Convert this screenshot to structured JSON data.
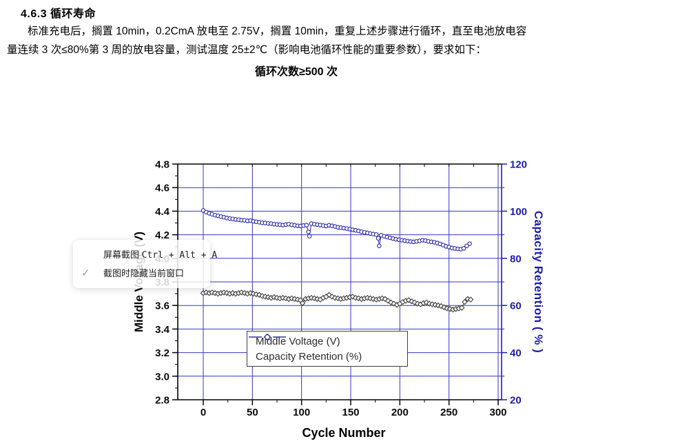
{
  "document": {
    "heading": "4.6.3  循环寿命",
    "paragraph_line1": "标准充电后，搁置 10min，0.2CmA 放电至 2.75V，搁置 10min，重复上述步骤进行循环，直至电池放电容",
    "paragraph_line2": "量连续 3 次≤80%第 3 周的放电容量，测试温度 25±2℃（影响电池循环性能的重要参数），要求如下：",
    "requirement": "循环次数≥500 次"
  },
  "screenshot_popup": {
    "menu_label": "屏幕截图",
    "menu_shortcut": "Ctrl + Alt + A",
    "check_icon": "✓",
    "option_label": "截图时隐藏当前窗口"
  },
  "chart_data": {
    "type": "line",
    "title": "",
    "xlabel": "Cycle Number",
    "ylabel_left": "Middle Voltage (V)",
    "ylabel_right": "Capacity Retention ( % )",
    "xlim": [
      -26,
      304
    ],
    "ylim_left": [
      2.8,
      4.8
    ],
    "ylim_right": [
      20,
      120
    ],
    "grid": true,
    "legend_position": "inside-bottom-center",
    "x_ticks": [
      0,
      50,
      100,
      150,
      200,
      250,
      300
    ],
    "y_left_ticks": [
      "2.8",
      "3.0",
      "3.2",
      "3.4",
      "3.6",
      "3.8",
      "4.0",
      "4.2",
      "4.4",
      "4.6",
      "4.8"
    ],
    "y_right_ticks": [
      "20",
      "40",
      "60",
      "80",
      "100",
      "120"
    ],
    "style": {
      "grid_color": "#3434c8",
      "axis_color": "#000000",
      "right_axis_color": "#1c1cac",
      "left_tick_label_color": "#0a0a0a"
    },
    "series": [
      {
        "id": "middle-voltage",
        "name": "Middle Voltage (V)",
        "axis": "left",
        "marker": "diamond",
        "color": "#3a3a3a",
        "points": [
          [
            0,
            3.705
          ],
          [
            3,
            3.71
          ],
          [
            6,
            3.705
          ],
          [
            9,
            3.71
          ],
          [
            12,
            3.705
          ],
          [
            15,
            3.7
          ],
          [
            18,
            3.705
          ],
          [
            21,
            3.71
          ],
          [
            24,
            3.705
          ],
          [
            27,
            3.7
          ],
          [
            30,
            3.705
          ],
          [
            33,
            3.7
          ],
          [
            36,
            3.705
          ],
          [
            39,
            3.71
          ],
          [
            42,
            3.705
          ],
          [
            45,
            3.7
          ],
          [
            48,
            3.705
          ],
          [
            51,
            3.7
          ],
          [
            54,
            3.695
          ],
          [
            57,
            3.69
          ],
          [
            60,
            3.68
          ],
          [
            63,
            3.675
          ],
          [
            66,
            3.67
          ],
          [
            69,
            3.665
          ],
          [
            72,
            3.67
          ],
          [
            75,
            3.665
          ],
          [
            78,
            3.66
          ],
          [
            81,
            3.665
          ],
          [
            84,
            3.66
          ],
          [
            87,
            3.655
          ],
          [
            90,
            3.66
          ],
          [
            93,
            3.655
          ],
          [
            96,
            3.65
          ],
          [
            99,
            3.645
          ],
          [
            101,
            3.62
          ],
          [
            104,
            3.655
          ],
          [
            107,
            3.66
          ],
          [
            110,
            3.665
          ],
          [
            113,
            3.66
          ],
          [
            116,
            3.655
          ],
          [
            119,
            3.65
          ],
          [
            122,
            3.665
          ],
          [
            125,
            3.675
          ],
          [
            128,
            3.69
          ],
          [
            131,
            3.675
          ],
          [
            134,
            3.665
          ],
          [
            137,
            3.66
          ],
          [
            140,
            3.655
          ],
          [
            143,
            3.66
          ],
          [
            146,
            3.665
          ],
          [
            149,
            3.67
          ],
          [
            152,
            3.675
          ],
          [
            155,
            3.665
          ],
          [
            158,
            3.66
          ],
          [
            161,
            3.655
          ],
          [
            164,
            3.66
          ],
          [
            167,
            3.665
          ],
          [
            170,
            3.66
          ],
          [
            173,
            3.655
          ],
          [
            176,
            3.65
          ],
          [
            179,
            3.655
          ],
          [
            182,
            3.66
          ],
          [
            185,
            3.655
          ],
          [
            188,
            3.64
          ],
          [
            191,
            3.625
          ],
          [
            194,
            3.615
          ],
          [
            197,
            3.605
          ],
          [
            200,
            3.615
          ],
          [
            203,
            3.63
          ],
          [
            206,
            3.64
          ],
          [
            209,
            3.645
          ],
          [
            212,
            3.635
          ],
          [
            215,
            3.625
          ],
          [
            218,
            3.615
          ],
          [
            221,
            3.61
          ],
          [
            224,
            3.62
          ],
          [
            227,
            3.625
          ],
          [
            230,
            3.615
          ],
          [
            233,
            3.61
          ],
          [
            236,
            3.605
          ],
          [
            239,
            3.6
          ],
          [
            242,
            3.595
          ],
          [
            245,
            3.585
          ],
          [
            248,
            3.575
          ],
          [
            251,
            3.57
          ],
          [
            254,
            3.565
          ],
          [
            257,
            3.57
          ],
          [
            260,
            3.575
          ],
          [
            263,
            3.58
          ],
          [
            266,
            3.63
          ],
          [
            269,
            3.655
          ],
          [
            272,
            3.65
          ]
        ]
      },
      {
        "id": "capacity-retention",
        "name": "Capacity Retention (%)",
        "axis": "right",
        "marker": "circle",
        "color": "#2828aa",
        "points": [
          [
            0,
            100.3
          ],
          [
            3,
            99.6
          ],
          [
            6,
            99.1
          ],
          [
            9,
            98.7
          ],
          [
            12,
            98.3
          ],
          [
            15,
            98
          ],
          [
            18,
            97.7
          ],
          [
            21,
            97.4
          ],
          [
            24,
            97.1
          ],
          [
            27,
            96.9
          ],
          [
            30,
            96.7
          ],
          [
            33,
            96.5
          ],
          [
            36,
            96.4
          ],
          [
            39,
            96.2
          ],
          [
            42,
            96.1
          ],
          [
            45,
            95.9
          ],
          [
            48,
            96
          ],
          [
            51,
            95.7
          ],
          [
            54,
            95.5
          ],
          [
            57,
            95.3
          ],
          [
            60,
            95.1
          ],
          [
            63,
            95
          ],
          [
            66,
            94.8
          ],
          [
            69,
            94.7
          ],
          [
            72,
            94.5
          ],
          [
            75,
            94.4
          ],
          [
            78,
            94.3
          ],
          [
            81,
            94.1
          ],
          [
            84,
            94.3
          ],
          [
            87,
            94.5
          ],
          [
            90,
            94.2
          ],
          [
            93,
            94
          ],
          [
            96,
            93.8
          ],
          [
            99,
            93.7
          ],
          [
            102,
            93.9
          ],
          [
            105,
            94.1
          ],
          [
            107,
            91.2
          ],
          [
            108,
            89.4
          ],
          [
            110,
            94.7
          ],
          [
            113,
            94.5
          ],
          [
            116,
            94.3
          ],
          [
            119,
            94.1
          ],
          [
            122,
            93.9
          ],
          [
            125,
            93.7
          ],
          [
            128,
            94
          ],
          [
            131,
            93.8
          ],
          [
            134,
            93.5
          ],
          [
            137,
            93.2
          ],
          [
            140,
            93
          ],
          [
            143,
            92.8
          ],
          [
            146,
            92.6
          ],
          [
            149,
            92.4
          ],
          [
            152,
            92.1
          ],
          [
            155,
            91.9
          ],
          [
            158,
            91.6
          ],
          [
            161,
            91.3
          ],
          [
            164,
            91
          ],
          [
            167,
            90.8
          ],
          [
            170,
            90.5
          ],
          [
            173,
            90.3
          ],
          [
            176,
            90.1
          ],
          [
            178,
            88.5
          ],
          [
            179,
            85.3
          ],
          [
            181,
            89.8
          ],
          [
            184,
            89.4
          ],
          [
            187,
            89
          ],
          [
            190,
            88.7
          ],
          [
            193,
            88.4
          ],
          [
            196,
            88.1
          ],
          [
            199,
            87.9
          ],
          [
            202,
            87.7
          ],
          [
            205,
            87.5
          ],
          [
            208,
            87.3
          ],
          [
            211,
            87.1
          ],
          [
            214,
            87
          ],
          [
            217,
            87.2
          ],
          [
            220,
            87.4
          ],
          [
            223,
            87.7
          ],
          [
            226,
            87.5
          ],
          [
            229,
            87.2
          ],
          [
            232,
            87
          ],
          [
            235,
            86.8
          ],
          [
            238,
            86.5
          ],
          [
            241,
            86.1
          ],
          [
            244,
            85.6
          ],
          [
            247,
            85.1
          ],
          [
            250,
            84.8
          ],
          [
            253,
            84.4
          ],
          [
            256,
            84.2
          ],
          [
            259,
            84
          ],
          [
            262,
            83.9
          ],
          [
            265,
            84.2
          ],
          [
            268,
            85.3
          ],
          [
            271,
            86.2
          ]
        ]
      }
    ]
  }
}
